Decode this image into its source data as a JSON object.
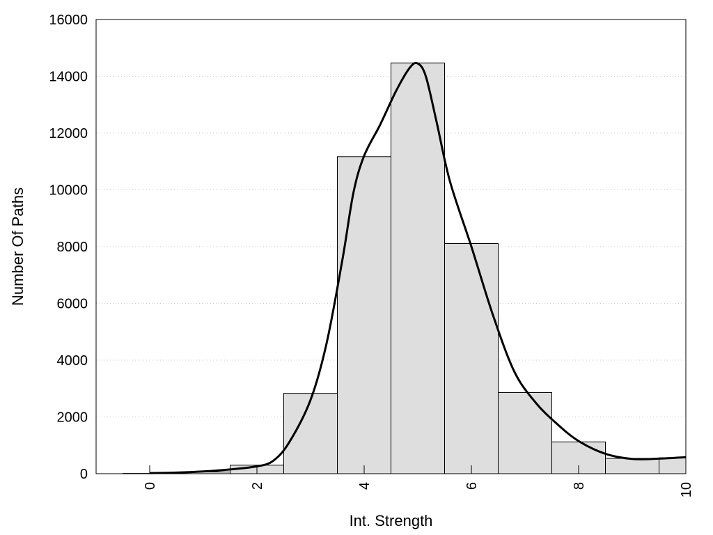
{
  "chart_data": {
    "type": "bar",
    "title": "",
    "xlabel": "Int. Strength",
    "ylabel": "Number Of Paths",
    "xlim": [
      -1,
      10
    ],
    "ylim": [
      0,
      16000
    ],
    "x_ticks": [
      0,
      2,
      4,
      6,
      8,
      10
    ],
    "y_ticks": [
      0,
      2000,
      4000,
      6000,
      8000,
      10000,
      12000,
      14000,
      16000
    ],
    "grid": "horizontal dotted",
    "bar_width": 1,
    "bins": [
      {
        "x": 0,
        "value": 10
      },
      {
        "x": 1,
        "value": 60
      },
      {
        "x": 2,
        "value": 300
      },
      {
        "x": 3,
        "value": 2830
      },
      {
        "x": 4,
        "value": 11170
      },
      {
        "x": 5,
        "value": 14470
      },
      {
        "x": 6,
        "value": 8110
      },
      {
        "x": 7,
        "value": 2860
      },
      {
        "x": 8,
        "value": 1120
      },
      {
        "x": 9,
        "value": 540
      },
      {
        "x": 10,
        "value": 560
      }
    ],
    "curve": {
      "x": [
        0,
        0.5,
        1,
        1.5,
        2,
        2.3,
        2.6,
        3,
        3.3,
        3.6,
        3.8,
        4,
        4.3,
        4.6,
        4.85,
        5,
        5.15,
        5.35,
        5.6,
        6,
        6.4,
        6.8,
        7.2,
        7.6,
        8,
        8.5,
        9,
        9.5,
        10
      ],
      "y": [
        20,
        40,
        80,
        150,
        260,
        450,
        1100,
        2600,
        4600,
        7600,
        9900,
        11200,
        12300,
        13500,
        14300,
        14450,
        14000,
        12400,
        10300,
        8000,
        5600,
        3600,
        2500,
        1750,
        1150,
        700,
        520,
        530,
        580
      ]
    },
    "colors": {
      "bar_fill": "#dedede",
      "bar_stroke": "#000000",
      "curve": "#000000",
      "grid": "#cccccc"
    }
  }
}
